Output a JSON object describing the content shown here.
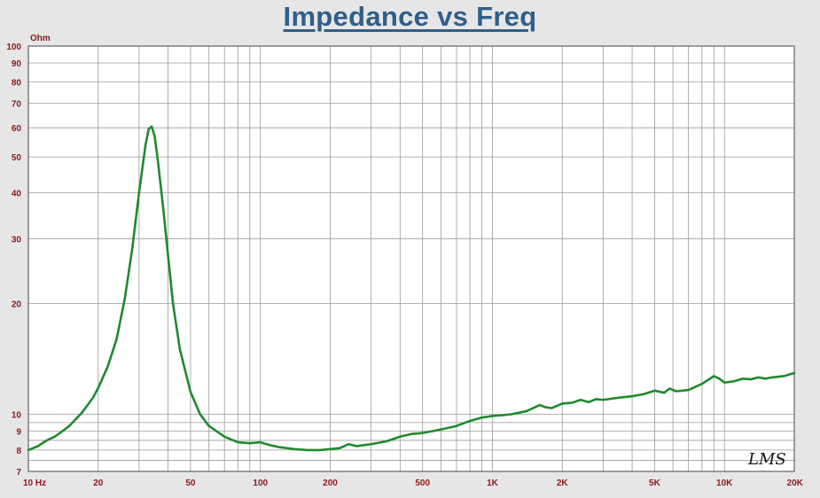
{
  "chart_data": {
    "type": "line",
    "title": "Impedance vs Freq",
    "ylabel": "Ohm",
    "xlabel": "",
    "xscale": "log",
    "yscale": "log",
    "xlim": [
      10,
      20000
    ],
    "ylim": [
      7,
      100
    ],
    "grid": true,
    "line_color": "#1f8a2e",
    "x_ticks": [
      {
        "value": 10,
        "label": "10  Hz"
      },
      {
        "value": 20,
        "label": "20"
      },
      {
        "value": 50,
        "label": "50"
      },
      {
        "value": 100,
        "label": "100"
      },
      {
        "value": 200,
        "label": "200"
      },
      {
        "value": 500,
        "label": "500"
      },
      {
        "value": 1000,
        "label": "1K"
      },
      {
        "value": 2000,
        "label": "2K"
      },
      {
        "value": 5000,
        "label": "5K"
      },
      {
        "value": 10000,
        "label": "10K"
      },
      {
        "value": 20000,
        "label": "20K"
      }
    ],
    "y_ticks": [
      {
        "value": 7,
        "label": "7"
      },
      {
        "value": 8,
        "label": "8"
      },
      {
        "value": 9,
        "label": "9"
      },
      {
        "value": 10,
        "label": "10"
      },
      {
        "value": 20,
        "label": "20"
      },
      {
        "value": 30,
        "label": "30"
      },
      {
        "value": 40,
        "label": "40"
      },
      {
        "value": 50,
        "label": "50"
      },
      {
        "value": 60,
        "label": "60"
      },
      {
        "value": 70,
        "label": "70"
      },
      {
        "value": 80,
        "label": "80"
      },
      {
        "value": 90,
        "label": "90"
      },
      {
        "value": 100,
        "label": "100"
      }
    ],
    "series": [
      {
        "x": [
          10,
          11,
          12,
          13,
          14,
          15,
          16,
          17,
          18,
          19,
          20,
          22,
          24,
          26,
          28,
          30,
          32,
          33,
          34,
          35,
          36,
          38,
          40,
          42,
          45,
          50,
          55,
          60,
          70,
          80,
          90,
          100,
          110,
          120,
          140,
          160,
          180,
          200,
          220,
          240,
          260,
          300,
          350,
          400,
          450,
          500,
          550,
          600,
          700,
          800,
          900,
          1000,
          1200,
          1400,
          1600,
          1700,
          1800,
          2000,
          2200,
          2400,
          2600,
          2800,
          3000,
          3500,
          4000,
          4500,
          5000,
          5500,
          5800,
          6200,
          7000,
          8000,
          9000,
          9500,
          10000,
          11000,
          12000,
          13000,
          14000,
          15000,
          16000,
          18000,
          20000
        ],
        "y": [
          8.0,
          8.2,
          8.5,
          8.7,
          9.0,
          9.3,
          9.7,
          10.1,
          10.6,
          11.1,
          11.8,
          13.5,
          16.0,
          20.5,
          28.0,
          40.0,
          54.0,
          59.5,
          60.5,
          57.0,
          50.0,
          37.0,
          27.0,
          20.0,
          15.0,
          11.5,
          10.0,
          9.3,
          8.7,
          8.4,
          8.35,
          8.4,
          8.25,
          8.15,
          8.05,
          8.0,
          8.0,
          8.05,
          8.1,
          8.3,
          8.2,
          8.3,
          8.45,
          8.7,
          8.85,
          8.9,
          9.0,
          9.1,
          9.3,
          9.6,
          9.8,
          9.9,
          10.0,
          10.2,
          10.6,
          10.45,
          10.4,
          10.7,
          10.75,
          10.95,
          10.8,
          11.0,
          10.95,
          11.1,
          11.2,
          11.35,
          11.6,
          11.45,
          11.75,
          11.55,
          11.65,
          12.1,
          12.7,
          12.5,
          12.2,
          12.3,
          12.5,
          12.45,
          12.6,
          12.5,
          12.6,
          12.7,
          12.95
        ]
      }
    ]
  },
  "watermark": "LMS"
}
